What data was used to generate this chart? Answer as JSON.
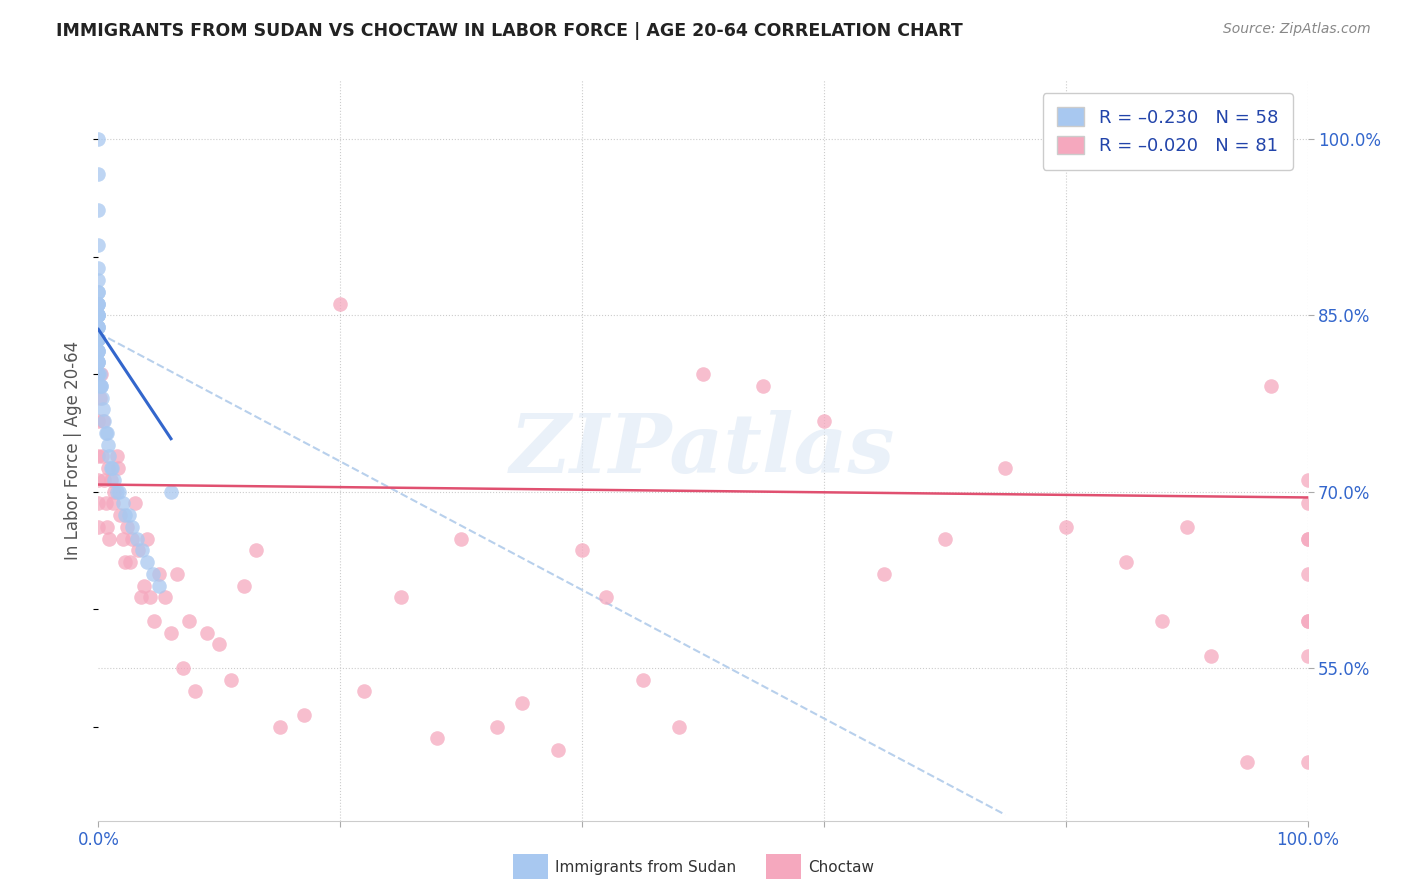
{
  "title": "IMMIGRANTS FROM SUDAN VS CHOCTAW IN LABOR FORCE | AGE 20-64 CORRELATION CHART",
  "source": "Source: ZipAtlas.com",
  "ylabel": "In Labor Force | Age 20-64",
  "xlim": [
    0.0,
    1.0
  ],
  "ylim": [
    0.42,
    1.05
  ],
  "x_ticks": [
    0.0,
    0.2,
    0.4,
    0.6,
    0.8,
    1.0
  ],
  "x_tick_labels": [
    "0.0%",
    "",
    "",
    "",
    "",
    "100.0%"
  ],
  "y_tick_labels_right": [
    "55.0%",
    "70.0%",
    "85.0%",
    "100.0%"
  ],
  "y_tick_values_right": [
    0.55,
    0.7,
    0.85,
    1.0
  ],
  "sudan_color": "#a8c8f0",
  "choctaw_color": "#f5a8be",
  "sudan_line_color": "#3366cc",
  "choctaw_line_color": "#e05070",
  "trend_dashed_color": "#b8d0ec",
  "watermark": "ZIPatlas",
  "sudan_points_x": [
    0.0,
    0.0,
    0.0,
    0.0,
    0.0,
    0.0,
    0.0,
    0.0,
    0.0,
    0.0,
    0.0,
    0.0,
    0.0,
    0.0,
    0.0,
    0.0,
    0.0,
    0.0,
    0.0,
    0.0,
    0.0,
    0.0,
    0.0,
    0.0,
    0.0,
    0.0,
    0.0,
    0.0,
    0.0,
    0.0,
    0.0,
    0.0,
    0.001,
    0.001,
    0.002,
    0.002,
    0.003,
    0.004,
    0.005,
    0.006,
    0.007,
    0.008,
    0.009,
    0.01,
    0.011,
    0.013,
    0.015,
    0.017,
    0.02,
    0.022,
    0.025,
    0.028,
    0.032,
    0.036,
    0.04,
    0.045,
    0.05,
    0.06
  ],
  "sudan_points_y": [
    1.0,
    0.97,
    0.94,
    0.91,
    0.89,
    0.88,
    0.87,
    0.87,
    0.86,
    0.86,
    0.86,
    0.85,
    0.85,
    0.85,
    0.85,
    0.84,
    0.84,
    0.84,
    0.83,
    0.83,
    0.83,
    0.83,
    0.83,
    0.82,
    0.82,
    0.82,
    0.81,
    0.81,
    0.81,
    0.8,
    0.8,
    0.8,
    0.8,
    0.79,
    0.79,
    0.79,
    0.78,
    0.77,
    0.76,
    0.75,
    0.75,
    0.74,
    0.73,
    0.72,
    0.72,
    0.71,
    0.7,
    0.7,
    0.69,
    0.68,
    0.68,
    0.67,
    0.66,
    0.65,
    0.64,
    0.63,
    0.62,
    0.7
  ],
  "choctaw_points_x": [
    0.0,
    0.0,
    0.0,
    0.0,
    0.0,
    0.001,
    0.002,
    0.003,
    0.004,
    0.005,
    0.006,
    0.007,
    0.008,
    0.009,
    0.01,
    0.012,
    0.013,
    0.015,
    0.016,
    0.018,
    0.02,
    0.022,
    0.024,
    0.026,
    0.028,
    0.03,
    0.033,
    0.035,
    0.038,
    0.04,
    0.043,
    0.046,
    0.05,
    0.055,
    0.06,
    0.065,
    0.07,
    0.075,
    0.08,
    0.09,
    0.1,
    0.11,
    0.12,
    0.13,
    0.15,
    0.17,
    0.2,
    0.22,
    0.25,
    0.28,
    0.3,
    0.33,
    0.35,
    0.38,
    0.4,
    0.42,
    0.45,
    0.48,
    0.5,
    0.55,
    0.6,
    0.65,
    0.7,
    0.75,
    0.8,
    0.85,
    0.88,
    0.9,
    0.92,
    0.95,
    0.97,
    1.0,
    1.0,
    1.0,
    1.0,
    1.0,
    1.0,
    1.0,
    1.0,
    1.0
  ],
  "choctaw_points_y": [
    0.76,
    0.73,
    0.71,
    0.69,
    0.67,
    0.78,
    0.8,
    0.73,
    0.76,
    0.71,
    0.69,
    0.67,
    0.72,
    0.66,
    0.71,
    0.69,
    0.7,
    0.73,
    0.72,
    0.68,
    0.66,
    0.64,
    0.67,
    0.64,
    0.66,
    0.69,
    0.65,
    0.61,
    0.62,
    0.66,
    0.61,
    0.59,
    0.63,
    0.61,
    0.58,
    0.63,
    0.55,
    0.59,
    0.53,
    0.58,
    0.57,
    0.54,
    0.62,
    0.65,
    0.5,
    0.51,
    0.86,
    0.53,
    0.61,
    0.49,
    0.66,
    0.5,
    0.52,
    0.48,
    0.65,
    0.61,
    0.54,
    0.5,
    0.8,
    0.79,
    0.76,
    0.63,
    0.66,
    0.72,
    0.67,
    0.64,
    0.59,
    0.67,
    0.56,
    0.47,
    0.79,
    0.66,
    0.71,
    0.63,
    0.59,
    0.56,
    0.66,
    0.69,
    0.59,
    0.47
  ],
  "dashed_line_x": [
    0.0,
    0.75
  ],
  "dashed_line_y": [
    0.835,
    0.425
  ],
  "sudan_trend_x": [
    0.0,
    0.06
  ],
  "sudan_trend_y": [
    0.838,
    0.745
  ],
  "choctaw_trend_x": [
    0.0,
    1.0
  ],
  "choctaw_trend_y": [
    0.706,
    0.695
  ]
}
